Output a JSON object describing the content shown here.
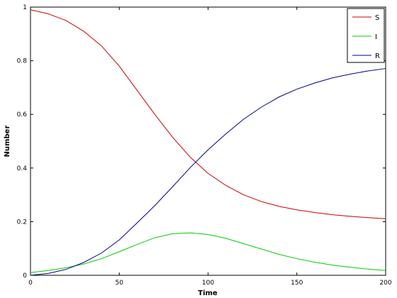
{
  "chart_data": {
    "type": "line",
    "title": "",
    "xlabel": "Time",
    "ylabel": "Number",
    "xlim": [
      0,
      200
    ],
    "ylim": [
      0,
      1
    ],
    "xticks": [
      0,
      50,
      100,
      150,
      200
    ],
    "yticks": [
      0,
      0.2,
      0.4,
      0.6,
      0.8,
      1
    ],
    "xtick_labels": [
      "0",
      "50",
      "100",
      "150",
      "200"
    ],
    "ytick_labels": [
      "0",
      "0.2",
      "0.4",
      "0.6",
      "0.8",
      "1"
    ],
    "grid": false,
    "legend_position": "top-right",
    "x": [
      0,
      10,
      20,
      30,
      40,
      50,
      60,
      70,
      80,
      90,
      100,
      110,
      120,
      130,
      140,
      150,
      160,
      170,
      180,
      190,
      200
    ],
    "series": [
      {
        "name": "S",
        "color": "#cc0000",
        "values": [
          0.99,
          0.975,
          0.95,
          0.91,
          0.855,
          0.78,
          0.69,
          0.6,
          0.515,
          0.44,
          0.38,
          0.335,
          0.3,
          0.275,
          0.257,
          0.244,
          0.234,
          0.226,
          0.22,
          0.215,
          0.211
        ]
      },
      {
        "name": "I",
        "color": "#00cc00",
        "values": [
          0.01,
          0.018,
          0.028,
          0.042,
          0.062,
          0.088,
          0.115,
          0.14,
          0.155,
          0.158,
          0.152,
          0.138,
          0.118,
          0.098,
          0.078,
          0.062,
          0.049,
          0.038,
          0.03,
          0.023,
          0.018
        ]
      },
      {
        "name": "R",
        "color": "#00008b",
        "values": [
          0.0,
          0.007,
          0.022,
          0.048,
          0.083,
          0.132,
          0.195,
          0.26,
          0.33,
          0.402,
          0.468,
          0.527,
          0.582,
          0.627,
          0.665,
          0.694,
          0.717,
          0.736,
          0.75,
          0.762,
          0.771
        ]
      }
    ]
  }
}
